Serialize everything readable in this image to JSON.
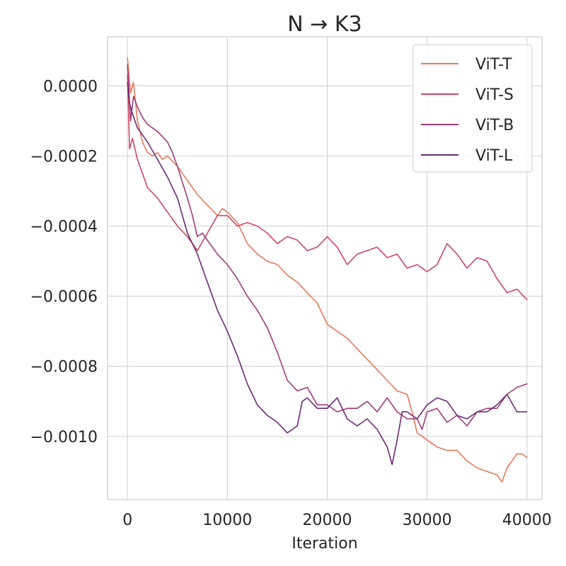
{
  "chart_data": {
    "type": "line",
    "title": "N → K3",
    "xlabel": "Iteration",
    "ylabel": "",
    "xlim": [
      -2000,
      41500
    ],
    "ylim": [
      -0.00118,
      0.00014
    ],
    "x_ticks": [
      0,
      10000,
      20000,
      30000,
      40000
    ],
    "x_tick_labels": [
      "0",
      "10000",
      "20000",
      "30000",
      "40000"
    ],
    "y_ticks": [
      0.0,
      -0.0002,
      -0.0004,
      -0.0006,
      -0.0008,
      -0.001
    ],
    "y_tick_labels": [
      "0.0000",
      "−0.0002",
      "−0.0004",
      "−0.0006",
      "−0.0008",
      "−0.0010"
    ],
    "grid": true,
    "legend_position": "top-right",
    "series": [
      {
        "name": "ViT-T",
        "color": "#e8785a",
        "x": [
          0,
          300,
          600,
          1000,
          1500,
          2000,
          2500,
          3000,
          3500,
          4000,
          5000,
          6000,
          7000,
          8000,
          9000,
          9500,
          10000,
          11000,
          12000,
          13000,
          14000,
          15000,
          16000,
          17000,
          18000,
          19000,
          20000,
          21000,
          22000,
          23000,
          24000,
          25000,
          26000,
          27000,
          28000,
          28500,
          29000,
          30000,
          31000,
          32000,
          33000,
          34000,
          35000,
          36000,
          37000,
          37500,
          38000,
          38500,
          39000,
          39500,
          40000
        ],
        "y": [
          8e-05,
          -2e-05,
          1e-05,
          -0.0001,
          -0.00016,
          -0.00019,
          -0.0002,
          -0.00019,
          -0.00021,
          -0.0002,
          -0.00023,
          -0.00027,
          -0.00031,
          -0.00034,
          -0.00037,
          -0.00035,
          -0.00036,
          -0.00039,
          -0.00045,
          -0.00048,
          -0.0005,
          -0.00051,
          -0.00054,
          -0.00056,
          -0.00059,
          -0.00062,
          -0.00068,
          -0.0007,
          -0.00072,
          -0.00075,
          -0.00078,
          -0.00081,
          -0.00084,
          -0.00087,
          -0.00088,
          -0.00093,
          -0.00099,
          -0.00101,
          -0.00103,
          -0.00104,
          -0.00104,
          -0.00107,
          -0.00109,
          -0.0011,
          -0.00111,
          -0.00113,
          -0.00109,
          -0.00107,
          -0.00105,
          -0.00105,
          -0.00106
        ]
      },
      {
        "name": "ViT-S",
        "color": "#cf4760",
        "x": [
          0,
          200,
          500,
          1000,
          1500,
          2000,
          3000,
          4000,
          5000,
          6000,
          7000,
          8000,
          9000,
          10000,
          11000,
          12000,
          13000,
          14000,
          15000,
          16000,
          17000,
          18000,
          19000,
          20000,
          21000,
          22000,
          23000,
          24000,
          25000,
          26000,
          27000,
          28000,
          29000,
          30000,
          31000,
          32000,
          33000,
          34000,
          35000,
          36000,
          37000,
          38000,
          39000,
          40000
        ],
        "y": [
          3e-05,
          -0.00018,
          -0.00015,
          -0.00021,
          -0.00025,
          -0.00029,
          -0.00032,
          -0.00036,
          -0.0004,
          -0.00043,
          -0.00047,
          -0.00042,
          -0.00037,
          -0.00037,
          -0.0004,
          -0.00039,
          -0.0004,
          -0.00042,
          -0.00045,
          -0.00043,
          -0.00044,
          -0.00047,
          -0.00046,
          -0.00043,
          -0.00046,
          -0.00051,
          -0.00048,
          -0.00047,
          -0.00046,
          -0.00049,
          -0.00048,
          -0.00052,
          -0.00051,
          -0.00053,
          -0.00051,
          -0.00045,
          -0.00048,
          -0.00052,
          -0.00049,
          -0.0005,
          -0.00055,
          -0.00059,
          -0.00058,
          -0.00061
        ]
      },
      {
        "name": "ViT-B",
        "color": "#a33b77",
        "x": [
          0,
          300,
          600,
          1000,
          1500,
          2000,
          3000,
          4000,
          4500,
          5000,
          6000,
          6500,
          7000,
          7500,
          8000,
          9000,
          10000,
          11000,
          12000,
          13000,
          14000,
          15000,
          16000,
          17000,
          18000,
          19000,
          20000,
          21000,
          22000,
          23000,
          24000,
          25000,
          26000,
          27000,
          28000,
          29000,
          29500,
          30000,
          31000,
          32000,
          33000,
          34000,
          35000,
          36000,
          37000,
          38000,
          39000,
          40000
        ],
        "y": [
          6e-05,
          -0.0001,
          -3e-05,
          -6e-05,
          -9e-05,
          -0.00011,
          -0.00013,
          -0.00016,
          -0.00019,
          -0.00023,
          -0.00032,
          -0.00037,
          -0.00043,
          -0.00042,
          -0.00044,
          -0.00048,
          -0.00051,
          -0.00055,
          -0.0006,
          -0.00064,
          -0.00069,
          -0.00076,
          -0.00084,
          -0.00087,
          -0.00086,
          -0.00091,
          -0.00091,
          -0.00093,
          -0.00092,
          -0.00092,
          -0.0009,
          -0.00093,
          -0.00089,
          -0.00093,
          -0.00095,
          -0.00095,
          -0.00098,
          -0.00093,
          -0.00092,
          -0.00096,
          -0.00094,
          -0.00097,
          -0.00093,
          -0.00092,
          -0.00092,
          -0.00088,
          -0.00086,
          -0.00085
        ]
      },
      {
        "name": "ViT-L",
        "color": "#6c2c72",
        "x": [
          0,
          200,
          500,
          1000,
          2000,
          3000,
          4000,
          5000,
          6000,
          7000,
          8000,
          9000,
          10000,
          11000,
          12000,
          13000,
          14000,
          15000,
          16000,
          17000,
          17500,
          18000,
          19000,
          20000,
          21000,
          22000,
          23000,
          24000,
          25000,
          26000,
          26500,
          27000,
          27500,
          28000,
          29000,
          30000,
          31000,
          32000,
          33000,
          34000,
          35000,
          36000,
          37000,
          38000,
          39000,
          40000
        ],
        "y": [
          1e-05,
          -5e-05,
          -8e-05,
          -0.00012,
          -0.00016,
          -0.00021,
          -0.00026,
          -0.00032,
          -0.00042,
          -0.00048,
          -0.00056,
          -0.00064,
          -0.0007,
          -0.00077,
          -0.00085,
          -0.00091,
          -0.00094,
          -0.00096,
          -0.00099,
          -0.00097,
          -0.0009,
          -0.00089,
          -0.00092,
          -0.00092,
          -0.00089,
          -0.00095,
          -0.00097,
          -0.00095,
          -0.00098,
          -0.00103,
          -0.00108,
          -0.00101,
          -0.00093,
          -0.00093,
          -0.00095,
          -0.00091,
          -0.00089,
          -0.0009,
          -0.00094,
          -0.00095,
          -0.00093,
          -0.00093,
          -0.00091,
          -0.00088,
          -0.00093,
          -0.00093
        ]
      }
    ]
  }
}
